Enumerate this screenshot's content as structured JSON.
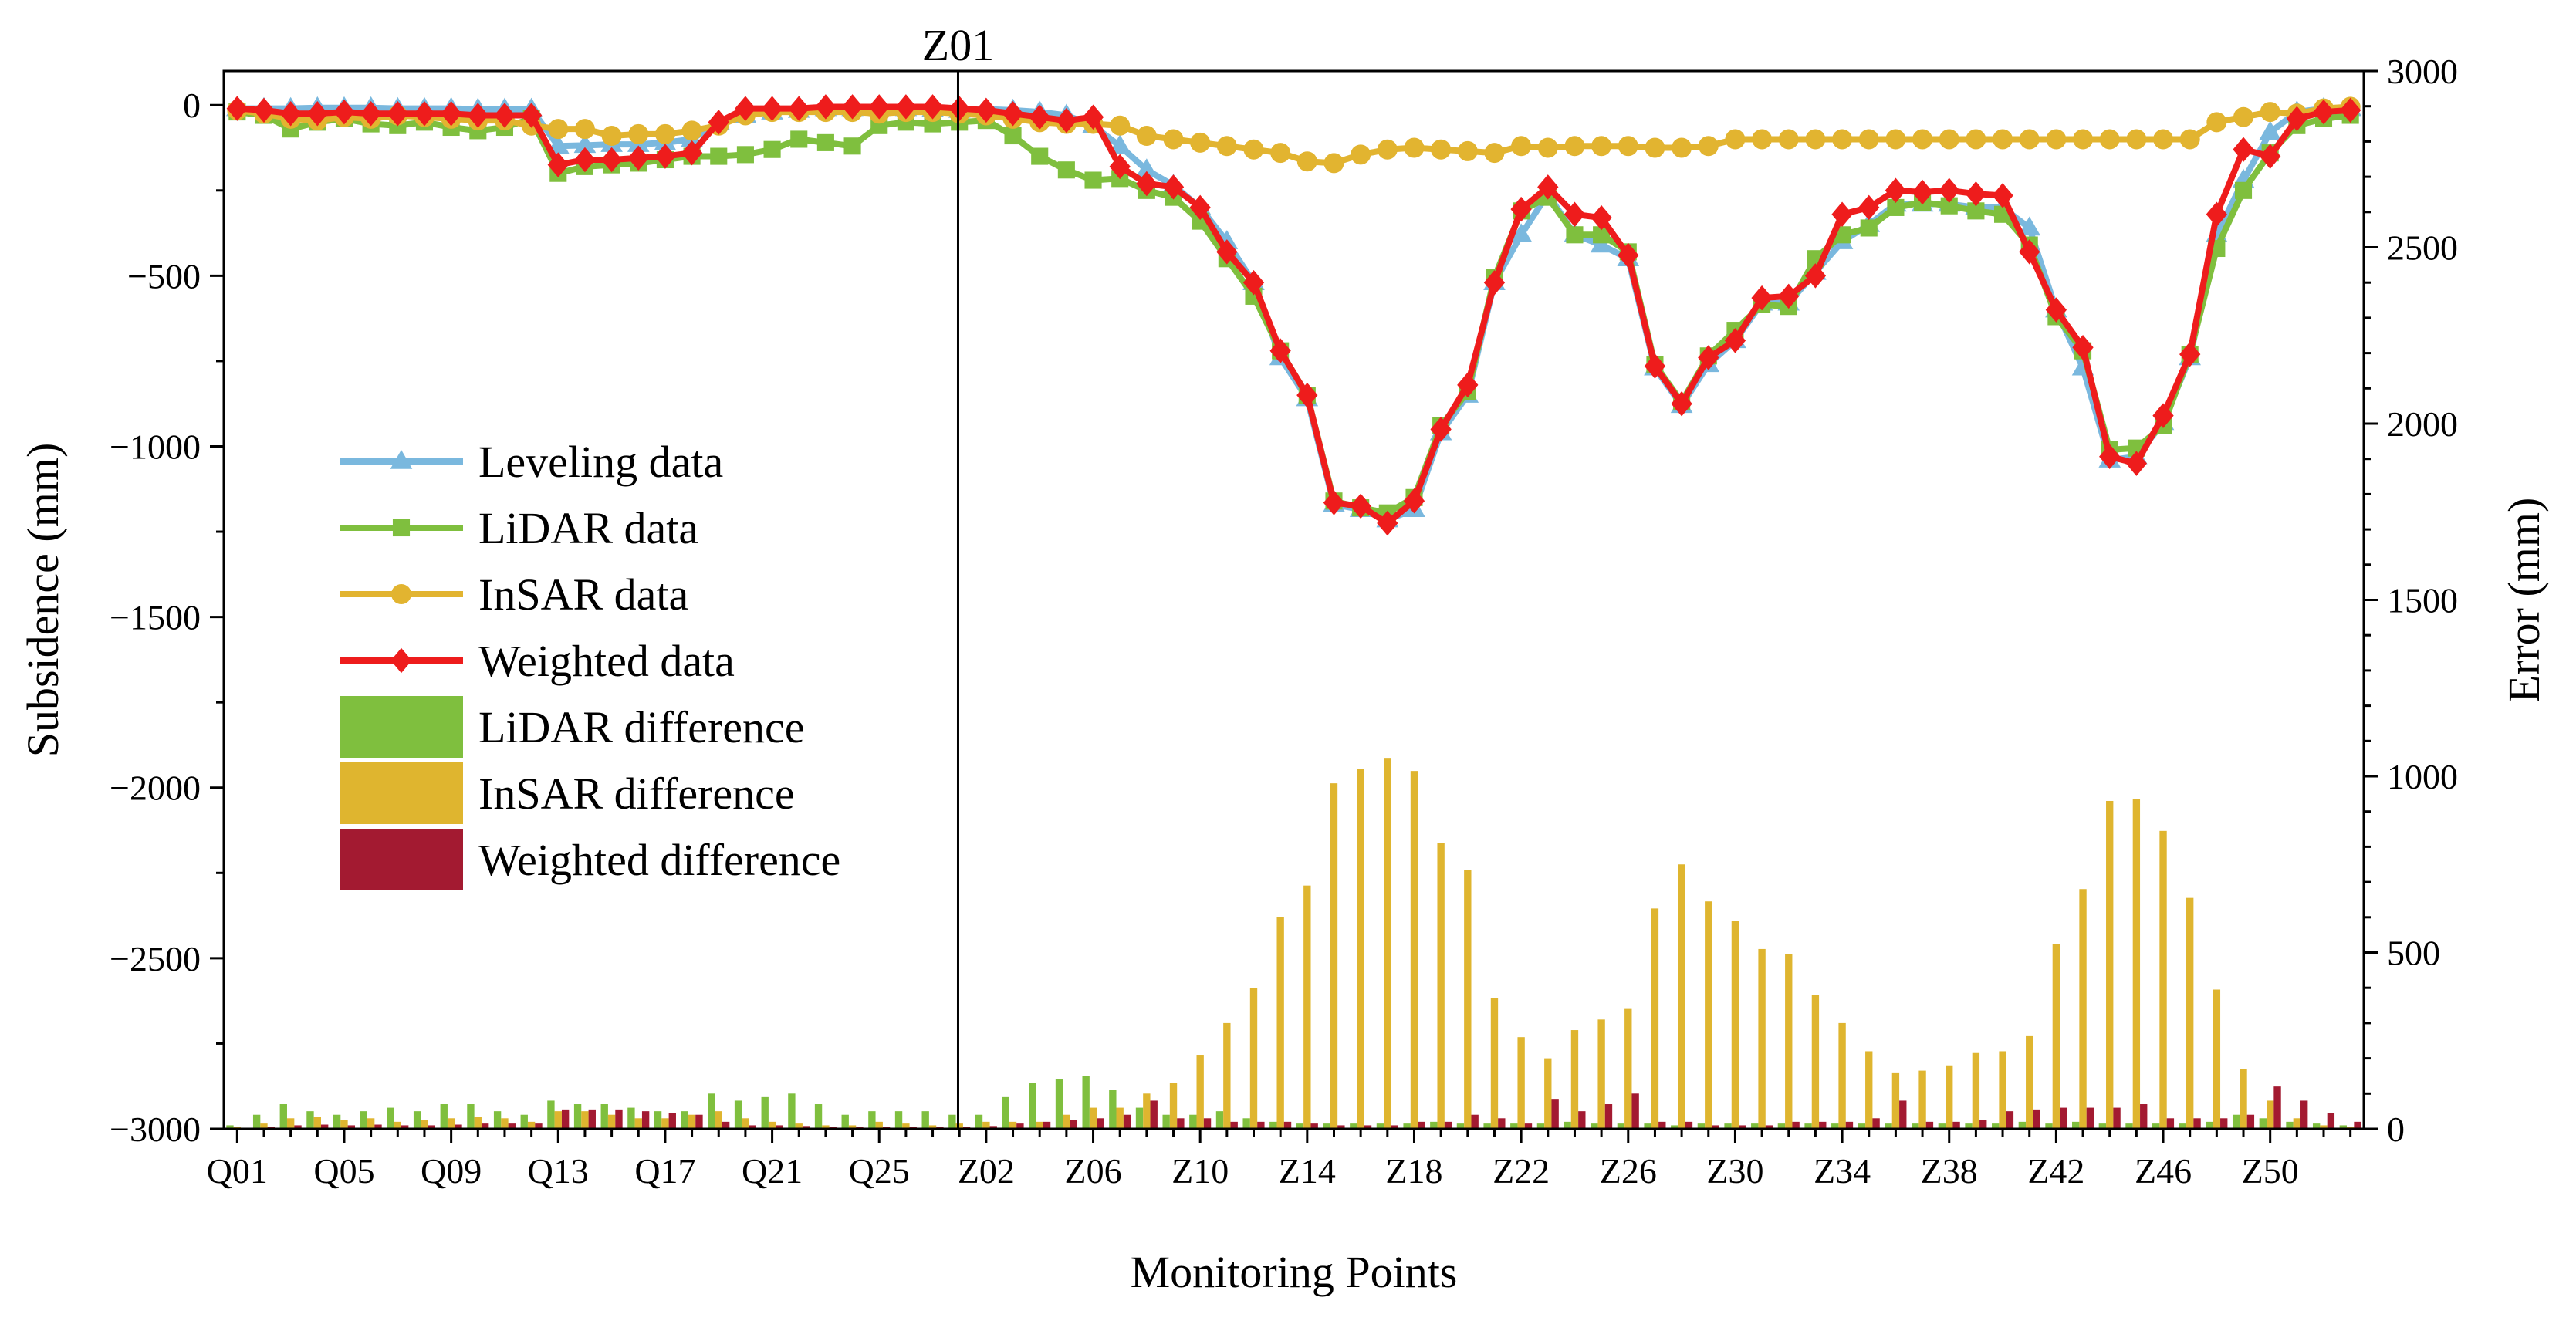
{
  "chart_data": {
    "type": "bar+line",
    "xlabel": "Monitoring Points",
    "ylabel_left": "Subsidence (mm)",
    "ylabel_right": "Error (mm)",
    "ylim_left": [
      -3000,
      100
    ],
    "ylim_right": [
      0,
      3000
    ],
    "yticks_left": [
      0,
      -500,
      -1000,
      -1500,
      -2000,
      -2500,
      -3000
    ],
    "yticks_right": [
      0,
      500,
      1000,
      1500,
      2000,
      2500,
      3000
    ],
    "ytick_labels_left": [
      "0",
      "−500",
      "−1000",
      "−1500",
      "−2000",
      "−2500",
      "−3000"
    ],
    "ytick_labels_right": [
      "0",
      "500",
      "1000",
      "1500",
      "2000",
      "2500",
      "3000"
    ],
    "vertical_marker": {
      "label": "Z01",
      "category": "Z01"
    },
    "legend_position": "left",
    "categories": [
      "Q01",
      "Q02",
      "Q03",
      "Q04",
      "Q05",
      "Q06",
      "Q07",
      "Q08",
      "Q09",
      "Q10",
      "Q11",
      "Q12",
      "Q13",
      "Q14",
      "Q15",
      "Q16",
      "Q17",
      "Q18",
      "Q19",
      "Q20",
      "Q21",
      "Q22",
      "Q23",
      "Q24",
      "Q25",
      "Q26",
      "Q27",
      "Z01",
      "Z02",
      "Z03",
      "Z04",
      "Z05",
      "Z06",
      "Z07",
      "Z08",
      "Z09",
      "Z10",
      "Z11",
      "Z12",
      "Z13",
      "Z14",
      "Z15",
      "Z16",
      "Z17",
      "Z18",
      "Z19",
      "Z20",
      "Z21",
      "Z22",
      "Z23",
      "Z24",
      "Z25",
      "Z26",
      "Z27",
      "Z28",
      "Z29",
      "Z30",
      "Z31",
      "Z32",
      "Z33",
      "Z34",
      "Z35",
      "Z36",
      "Z37",
      "Z38",
      "Z39",
      "Z40",
      "Z41",
      "Z42",
      "Z43",
      "Z44",
      "Z45",
      "Z46",
      "Z47",
      "Z48",
      "Z49",
      "Z50",
      "Z51",
      "Z52",
      "Z53"
    ],
    "tick_labels": [
      "Q01",
      "Q05",
      "Q09",
      "Q13",
      "Q17",
      "Q21",
      "Q25",
      "Z02",
      "Z06",
      "Z10",
      "Z14",
      "Z18",
      "Z22",
      "Z26",
      "Z30",
      "Z34",
      "Z38",
      "Z42",
      "Z46",
      "Z50"
    ],
    "line_series": [
      {
        "name": "Leveling data",
        "color": "#7ab8de",
        "marker": "triangle",
        "values": [
          -10,
          -10,
          -10,
          -8,
          -8,
          -8,
          -10,
          -10,
          -10,
          -12,
          -12,
          -12,
          -120,
          -118,
          -115,
          -115,
          -110,
          -100,
          -50,
          -30,
          -20,
          -15,
          -10,
          -10,
          -10,
          -10,
          -12,
          -15,
          -12,
          -15,
          -20,
          -30,
          -60,
          -120,
          -190,
          -235,
          -300,
          -400,
          -520,
          -740,
          -860,
          -1170,
          -1185,
          -1215,
          -1185,
          -960,
          -850,
          -520,
          -380,
          -260,
          -380,
          -410,
          -450,
          -770,
          -880,
          -760,
          -690,
          -580,
          -580,
          -490,
          -400,
          -350,
          -290,
          -290,
          -290,
          -300,
          -300,
          -360,
          -600,
          -770,
          -1040,
          -1030,
          -930,
          -740,
          -380,
          -220,
          -80,
          -20,
          -10,
          -10
        ]
      },
      {
        "name": "LiDAR data",
        "color": "#7fbf3e",
        "marker": "square",
        "values": [
          -20,
          -30,
          -70,
          -50,
          -40,
          -55,
          -60,
          -50,
          -65,
          -75,
          -65,
          -40,
          -200,
          -180,
          -175,
          -170,
          -160,
          -150,
          -150,
          -145,
          -130,
          -100,
          -110,
          -120,
          -60,
          -50,
          -55,
          -50,
          -45,
          -90,
          -150,
          -190,
          -220,
          -215,
          -250,
          -270,
          -340,
          -450,
          -560,
          -720,
          -850,
          -1160,
          -1180,
          -1195,
          -1150,
          -940,
          -840,
          -505,
          -310,
          -270,
          -380,
          -380,
          -430,
          -760,
          -870,
          -735,
          -660,
          -585,
          -590,
          -450,
          -380,
          -360,
          -300,
          -285,
          -295,
          -310,
          -320,
          -410,
          -620,
          -720,
          -1010,
          -1005,
          -940,
          -730,
          -420,
          -250,
          -140,
          -60,
          -40,
          -30
        ]
      },
      {
        "name": "InSAR data",
        "color": "#e2b430",
        "marker": "circle",
        "values": [
          -15,
          -25,
          -40,
          -45,
          -35,
          -40,
          -30,
          -35,
          -40,
          -45,
          -45,
          -60,
          -70,
          -70,
          -90,
          -85,
          -85,
          -75,
          -60,
          -30,
          -20,
          -20,
          -20,
          -20,
          -25,
          -20,
          -20,
          -25,
          -30,
          -40,
          -50,
          -55,
          -55,
          -60,
          -90,
          -100,
          -110,
          -120,
          -130,
          -140,
          -165,
          -170,
          -145,
          -130,
          -125,
          -130,
          -135,
          -140,
          -120,
          -125,
          -120,
          -120,
          -120,
          -125,
          -125,
          -120,
          -100,
          -100,
          -100,
          -100,
          -100,
          -100,
          -100,
          -100,
          -100,
          -100,
          -100,
          -100,
          -100,
          -100,
          -100,
          -100,
          -100,
          -100,
          -50,
          -35,
          -20,
          -25,
          -10,
          -5
        ]
      },
      {
        "name": "Weighted data",
        "color": "#ee1c1c",
        "marker": "diamond",
        "values": [
          -10,
          -15,
          -25,
          -25,
          -20,
          -25,
          -25,
          -25,
          -25,
          -30,
          -30,
          -30,
          -175,
          -160,
          -160,
          -155,
          -150,
          -140,
          -50,
          -10,
          -10,
          -10,
          -5,
          -5,
          -5,
          -5,
          -5,
          -10,
          -15,
          -25,
          -35,
          -45,
          -35,
          -180,
          -230,
          -240,
          -300,
          -430,
          -520,
          -720,
          -850,
          -1165,
          -1175,
          -1225,
          -1160,
          -950,
          -820,
          -520,
          -305,
          -240,
          -320,
          -330,
          -440,
          -765,
          -875,
          -740,
          -690,
          -565,
          -560,
          -500,
          -320,
          -300,
          -250,
          -255,
          -250,
          -260,
          -265,
          -430,
          -600,
          -710,
          -1030,
          -1050,
          -910,
          -730,
          -320,
          -130,
          -150,
          -40,
          -20,
          -15
        ]
      }
    ],
    "bar_series": [
      {
        "name": "LiDAR difference",
        "color": "#7fbf3e",
        "values": [
          10,
          40,
          70,
          50,
          40,
          50,
          60,
          50,
          70,
          70,
          50,
          40,
          80,
          70,
          70,
          60,
          50,
          50,
          100,
          80,
          90,
          100,
          70,
          40,
          50,
          50,
          50,
          40,
          40,
          90,
          130,
          140,
          150,
          110,
          60,
          40,
          40,
          50,
          30,
          20,
          15,
          15,
          15,
          15,
          15,
          20,
          15,
          15,
          15,
          15,
          20,
          15,
          15,
          15,
          10,
          15,
          15,
          15,
          15,
          15,
          15,
          15,
          15,
          15,
          15,
          15,
          15,
          20,
          15,
          20,
          15,
          15,
          15,
          15,
          20,
          40,
          30,
          20,
          15,
          10
        ]
      },
      {
        "name": "InSAR difference",
        "color": "#dfb52f",
        "values": [
          5,
          15,
          30,
          35,
          25,
          30,
          20,
          25,
          30,
          35,
          30,
          20,
          50,
          50,
          40,
          30,
          30,
          40,
          50,
          30,
          20,
          15,
          10,
          10,
          20,
          15,
          10,
          15,
          20,
          20,
          20,
          40,
          60,
          60,
          100,
          130,
          210,
          300,
          400,
          600,
          690,
          980,
          1020,
          1050,
          1015,
          810,
          735,
          370,
          260,
          200,
          280,
          310,
          340,
          625,
          750,
          645,
          590,
          510,
          495,
          380,
          300,
          220,
          160,
          165,
          180,
          215,
          220,
          265,
          525,
          680,
          930,
          935,
          845,
          655,
          395,
          170,
          80,
          30,
          10,
          5
        ]
      },
      {
        "name": "Weighted difference",
        "color": "#a31a31",
        "values": [
          2,
          5,
          10,
          12,
          10,
          12,
          10,
          10,
          12,
          15,
          15,
          15,
          55,
          55,
          55,
          50,
          45,
          40,
          20,
          10,
          10,
          8,
          5,
          5,
          5,
          5,
          5,
          5,
          8,
          15,
          20,
          25,
          30,
          40,
          80,
          30,
          30,
          20,
          20,
          20,
          15,
          10,
          10,
          10,
          20,
          20,
          40,
          30,
          15,
          85,
          50,
          70,
          100,
          20,
          20,
          10,
          10,
          10,
          20,
          20,
          20,
          30,
          80,
          20,
          20,
          25,
          50,
          55,
          60,
          60,
          60,
          70,
          30,
          30,
          30,
          40,
          120,
          80,
          45,
          20
        ]
      }
    ]
  }
}
